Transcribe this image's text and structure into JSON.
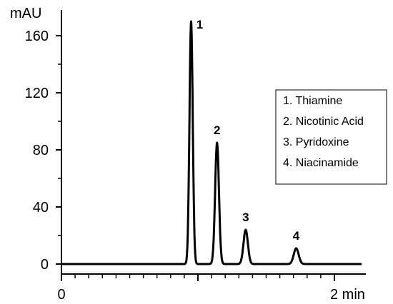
{
  "chart_data": {
    "type": "line",
    "title": "",
    "ylabel": "mAU",
    "xlabel": "min",
    "xlim": [
      0,
      2.1
    ],
    "ylim": [
      0,
      170
    ],
    "y_ticks": [
      0,
      40,
      80,
      120,
      160
    ],
    "y_tick_labels": [
      "0",
      "40",
      "80",
      "120",
      "160"
    ],
    "x_ticks": [
      0,
      2
    ],
    "x_tick_labels": [
      "0",
      "2 min"
    ],
    "grid": false,
    "legend_position": "right",
    "series": [
      {
        "peaks": [
          {
            "label": "1",
            "retention_time": 0.95,
            "height": 170
          },
          {
            "label": "2",
            "retention_time": 1.14,
            "height": 85
          },
          {
            "label": "3",
            "retention_time": 1.35,
            "height": 24
          },
          {
            "label": "4",
            "retention_time": 1.72,
            "height": 11
          }
        ]
      }
    ],
    "legend": [
      "1. Thiamine",
      "2. Nicotinic Acid",
      "3. Pyridoxine",
      "4. Niacinamide"
    ]
  }
}
